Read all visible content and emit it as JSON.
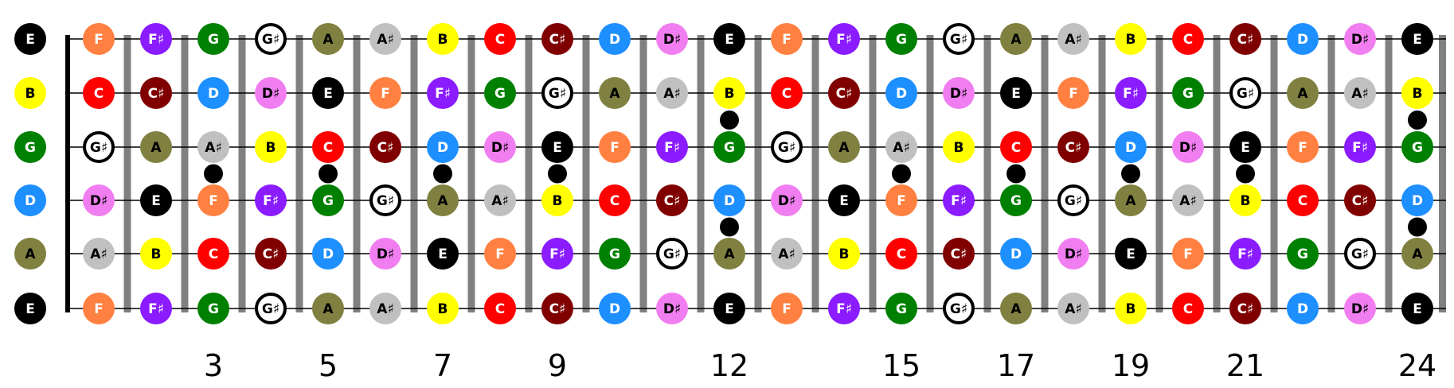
{
  "title": "",
  "strings": [
    {
      "open": "E",
      "notes": [
        "F",
        "F♯",
        "G",
        "G♯",
        "A",
        "A♯",
        "B",
        "C",
        "C♯",
        "D",
        "D♯",
        "E",
        "F",
        "F♯",
        "G",
        "G♯",
        "A",
        "A♯",
        "B",
        "C",
        "C♯",
        "D",
        "D♯",
        "E"
      ]
    },
    {
      "open": "B",
      "notes": [
        "C",
        "C♯",
        "D",
        "D♯",
        "E",
        "F",
        "F♯",
        "G",
        "G♯",
        "A",
        "A♯",
        "B",
        "C",
        "C♯",
        "D",
        "D♯",
        "E",
        "F",
        "F♯",
        "G",
        "G♯",
        "A",
        "A♯",
        "B"
      ]
    },
    {
      "open": "G",
      "notes": [
        "G♯",
        "A",
        "A♯",
        "B",
        "C",
        "C♯",
        "D",
        "D♯",
        "E",
        "F",
        "F♯",
        "G",
        "G♯",
        "A",
        "A♯",
        "B",
        "C",
        "C♯",
        "D",
        "D♯",
        "E",
        "F",
        "F♯",
        "G"
      ]
    },
    {
      "open": "D",
      "notes": [
        "D♯",
        "E",
        "F",
        "F♯",
        "G",
        "G♯",
        "A",
        "A♯",
        "B",
        "C",
        "C♯",
        "D",
        "D♯",
        "E",
        "F",
        "F♯",
        "G",
        "G♯",
        "A",
        "A♯",
        "B",
        "C",
        "C♯",
        "D"
      ]
    },
    {
      "open": "A",
      "notes": [
        "A♯",
        "B",
        "C",
        "C♯",
        "D",
        "D♯",
        "E",
        "F",
        "F♯",
        "G",
        "G♯",
        "A",
        "A♯",
        "B",
        "C",
        "C♯",
        "D",
        "D♯",
        "E",
        "F",
        "F♯",
        "G",
        "G♯",
        "A"
      ]
    },
    {
      "open": "E",
      "notes": [
        "F",
        "F♯",
        "G",
        "G♯",
        "A",
        "A♯",
        "B",
        "C",
        "C♯",
        "D",
        "D♯",
        "E",
        "F",
        "F♯",
        "G",
        "G♯",
        "A",
        "A♯",
        "B",
        "C",
        "C♯",
        "D",
        "D♯",
        "E"
      ]
    }
  ],
  "fret_markers": {
    "single": [
      3,
      5,
      7,
      9,
      15,
      17,
      19,
      21
    ],
    "double": [
      12,
      24
    ]
  },
  "fret_labels": [
    {
      "fret": 3,
      "text": "3"
    },
    {
      "fret": 5,
      "text": "5"
    },
    {
      "fret": 7,
      "text": "7"
    },
    {
      "fret": 9,
      "text": "9"
    },
    {
      "fret": 12,
      "text": "12"
    },
    {
      "fret": 15,
      "text": "15"
    },
    {
      "fret": 17,
      "text": "17"
    },
    {
      "fret": 19,
      "text": "19"
    },
    {
      "fret": 21,
      "text": "21"
    },
    {
      "fret": 24,
      "text": "24"
    }
  ],
  "note_colors": {
    "C": {
      "fill": "#ff0000",
      "text": "#ffffff",
      "ring": false
    },
    "C♯": {
      "fill": "#800000",
      "text": "#ffffff",
      "ring": false
    },
    "D": {
      "fill": "#1e8fff",
      "text": "#ffffff",
      "ring": false
    },
    "D♯": {
      "fill": "#f07ef0",
      "text": "#000000",
      "ring": false
    },
    "E": {
      "fill": "#000000",
      "text": "#ffffff",
      "ring": false
    },
    "F": {
      "fill": "#ff8040",
      "text": "#ffffff",
      "ring": false
    },
    "F♯": {
      "fill": "#8a1cff",
      "text": "#ffffff",
      "ring": false
    },
    "G": {
      "fill": "#008000",
      "text": "#ffffff",
      "ring": false
    },
    "G♯": {
      "fill": "#ffffff",
      "text": "#000000",
      "ring": true
    },
    "A": {
      "fill": "#808040",
      "text": "#000000",
      "ring": false
    },
    "A♯": {
      "fill": "#c0c0c0",
      "text": "#000000",
      "ring": false
    },
    "B": {
      "fill": "#ffff00",
      "text": "#000000",
      "ring": false
    }
  },
  "colors": {
    "fret_wire": "#808080",
    "string_line": "#000000",
    "nut": "#000000",
    "marker": "#000000",
    "label": "#000000"
  }
}
